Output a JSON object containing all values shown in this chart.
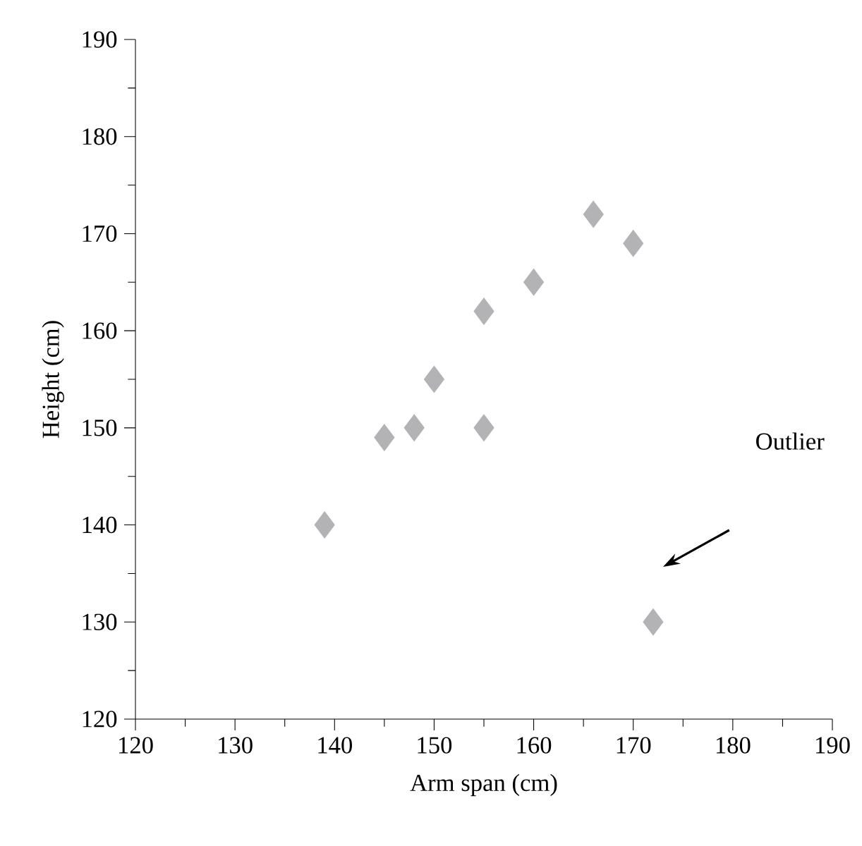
{
  "chart_data": {
    "type": "scatter",
    "xlabel": "Arm span (cm)",
    "ylabel": "Height (cm)",
    "x": [
      139,
      145,
      148,
      150,
      155,
      155,
      160,
      166,
      170,
      172
    ],
    "values": [
      140,
      149,
      150,
      155,
      162,
      150,
      165,
      172,
      169,
      130
    ],
    "color": "#b3b3b6",
    "marker": "diamond",
    "grid": false,
    "xlim": [
      120,
      190
    ],
    "xticks": [
      120,
      130,
      140,
      150,
      160,
      170,
      180,
      190
    ],
    "ylim": [
      120,
      190
    ],
    "yticks": [
      120,
      130,
      140,
      150,
      160,
      170,
      180,
      190
    ],
    "annotations": [
      "Outlier"
    ]
  }
}
